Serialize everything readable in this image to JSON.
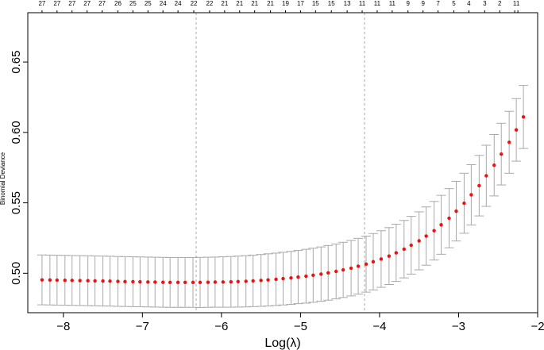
{
  "chart_data": {
    "type": "scatter",
    "title": "",
    "xlabel": "Log(λ)",
    "ylabel": "Binomial Deviance",
    "xlim": [
      -8.45,
      -2.0
    ],
    "ylim": [
      0.472,
      0.685
    ],
    "x_ticks": [
      -8,
      -7,
      -6,
      -5,
      -4,
      -3,
      -2
    ],
    "x_tick_labels": [
      "−8",
      "−7",
      "−6",
      "−5",
      "−4",
      "−3",
      "−2"
    ],
    "y_ticks": [
      0.5,
      0.55,
      0.6,
      0.65
    ],
    "y_tick_labels": [
      "0.50",
      "0.55",
      "0.60",
      "0.65"
    ],
    "top_axis_labels": [
      "27",
      "27",
      "27",
      "27",
      "27",
      "26",
      "25",
      "25",
      "24",
      "24",
      "22",
      "22",
      "21",
      "21",
      "21",
      "21",
      "19",
      "17",
      "15",
      "15",
      "13",
      "11",
      "11",
      "11",
      "9",
      "9",
      "7",
      "5",
      "4",
      "3",
      "2",
      "1",
      "1"
    ],
    "top_axis_label_x": [
      -8.27,
      -8.08,
      -7.89,
      -7.7,
      -7.51,
      -7.31,
      -7.12,
      -6.93,
      -6.74,
      -6.55,
      -6.35,
      -6.15,
      -5.96,
      -5.77,
      -5.58,
      -5.38,
      -5.19,
      -5.0,
      -4.81,
      -4.61,
      -4.41,
      -4.22,
      -4.03,
      -3.84,
      -3.64,
      -3.45,
      -3.26,
      -3.06,
      -2.87,
      -2.67,
      -2.48,
      -2.29,
      -2.25
    ],
    "reference_lines_x": [
      -6.32,
      -4.19
    ],
    "grid": false,
    "legend": "none",
    "point_color": "#ee1111",
    "errorbar_color": "#a9a9a9",
    "reference_line_color": "#a9a9a9",
    "series": [
      {
        "x": [
          -8.27,
          -8.17,
          -8.08,
          -7.98,
          -7.89,
          -7.79,
          -7.69,
          -7.6,
          -7.5,
          -7.41,
          -7.31,
          -7.22,
          -7.12,
          -7.03,
          -6.93,
          -6.84,
          -6.74,
          -6.65,
          -6.55,
          -6.46,
          -6.36,
          -6.27,
          -6.17,
          -6.08,
          -5.98,
          -5.88,
          -5.79,
          -5.69,
          -5.6,
          -5.5,
          -5.41,
          -5.31,
          -5.22,
          -5.12,
          -5.03,
          -4.93,
          -4.84,
          -4.74,
          -4.65,
          -4.55,
          -4.46,
          -4.36,
          -4.27,
          -4.17,
          -4.08,
          -3.98,
          -3.88,
          -3.79,
          -3.69,
          -3.6,
          -3.5,
          -3.41,
          -3.31,
          -3.22,
          -3.12,
          -3.03,
          -2.93,
          -2.84,
          -2.74,
          -2.65,
          -2.55,
          -2.46,
          -2.36,
          -2.27,
          -2.18
        ],
        "y": [
          0.4953,
          0.4952,
          0.4951,
          0.495,
          0.4949,
          0.4948,
          0.4947,
          0.4946,
          0.4945,
          0.4944,
          0.4942,
          0.4941,
          0.494,
          0.4939,
          0.4938,
          0.4937,
          0.4936,
          0.4935,
          0.4935,
          0.4935,
          0.4935,
          0.4935,
          0.4936,
          0.4937,
          0.4938,
          0.4939,
          0.4941,
          0.4943,
          0.4946,
          0.4949,
          0.4953,
          0.4957,
          0.4962,
          0.4967,
          0.4973,
          0.4979,
          0.4986,
          0.4994,
          0.5003,
          0.5013,
          0.5024,
          0.5036,
          0.505,
          0.5065,
          0.5082,
          0.5101,
          0.5122,
          0.5145,
          0.5171,
          0.5199,
          0.523,
          0.5264,
          0.5302,
          0.5344,
          0.5391,
          0.5441,
          0.5497,
          0.5557,
          0.5622,
          0.5692,
          0.5767,
          0.5846,
          0.593,
          0.6018,
          0.611
        ],
        "y_upper": [
          0.513,
          0.5129,
          0.5128,
          0.5127,
          0.5126,
          0.5125,
          0.5124,
          0.5123,
          0.5122,
          0.5121,
          0.5119,
          0.5118,
          0.5117,
          0.5116,
          0.5115,
          0.5114,
          0.5113,
          0.5112,
          0.5112,
          0.5112,
          0.5112,
          0.5113,
          0.5114,
          0.5115,
          0.5117,
          0.5119,
          0.5122,
          0.5125,
          0.5129,
          0.5133,
          0.5138,
          0.5143,
          0.5149,
          0.5155,
          0.5162,
          0.517,
          0.5178,
          0.5187,
          0.5197,
          0.5208,
          0.522,
          0.5233,
          0.5248,
          0.5264,
          0.5282,
          0.5302,
          0.5324,
          0.5348,
          0.5375,
          0.5404,
          0.5436,
          0.5471,
          0.551,
          0.5553,
          0.5601,
          0.5653,
          0.571,
          0.5771,
          0.5837,
          0.5909,
          0.5985,
          0.6065,
          0.615,
          0.624,
          0.6334
        ],
        "y_lower": [
          0.4776,
          0.4775,
          0.4774,
          0.4773,
          0.4772,
          0.4771,
          0.477,
          0.4769,
          0.4768,
          0.4767,
          0.4765,
          0.4764,
          0.4763,
          0.4762,
          0.4761,
          0.476,
          0.4759,
          0.4758,
          0.4758,
          0.4758,
          0.4758,
          0.4757,
          0.4758,
          0.4759,
          0.4759,
          0.4759,
          0.476,
          0.4761,
          0.4763,
          0.4765,
          0.4768,
          0.4771,
          0.4775,
          0.4779,
          0.4784,
          0.4788,
          0.4794,
          0.4801,
          0.4809,
          0.4818,
          0.4828,
          0.4839,
          0.4852,
          0.4866,
          0.4882,
          0.49,
          0.492,
          0.4942,
          0.4967,
          0.4994,
          0.5024,
          0.5057,
          0.5094,
          0.5135,
          0.5181,
          0.5229,
          0.5284,
          0.5343,
          0.5407,
          0.5475,
          0.5549,
          0.5627,
          0.571,
          0.5796,
          0.5886
        ]
      }
    ]
  }
}
